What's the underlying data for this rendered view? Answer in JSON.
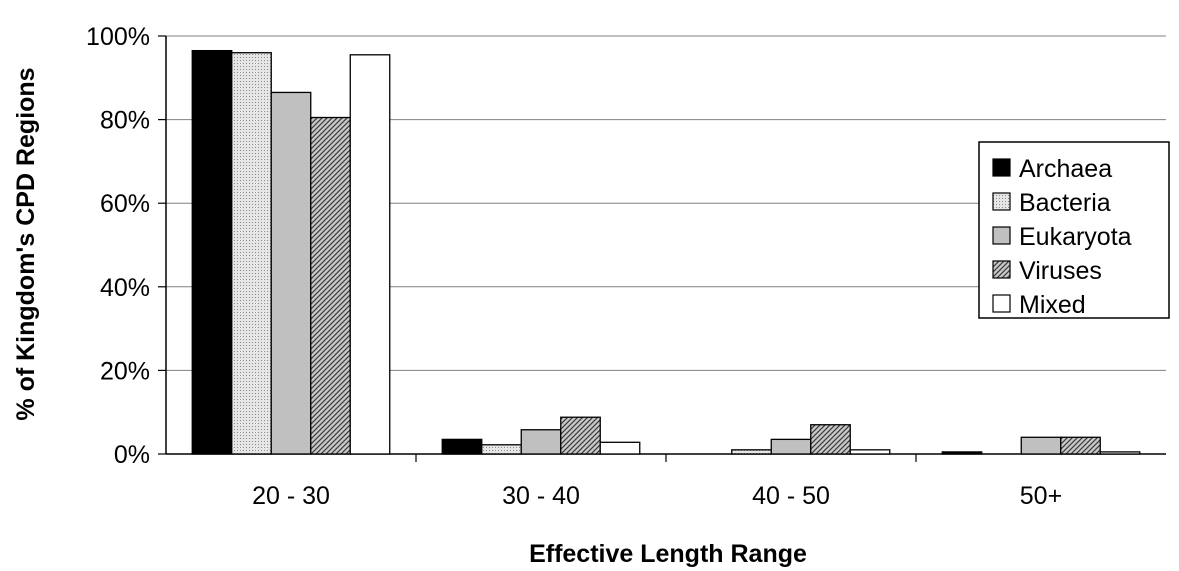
{
  "chart_data": {
    "type": "bar",
    "title": "",
    "xlabel": "Effective Length Range",
    "ylabel": "% of Kingdom's CPD Regions",
    "categories": [
      "20 - 30",
      "30 - 40",
      "40 - 50",
      "50+"
    ],
    "ylim": [
      0,
      100
    ],
    "yticks": [
      "0%",
      "20%",
      "40%",
      "60%",
      "80%",
      "100%"
    ],
    "ytick_values": [
      0,
      20,
      40,
      60,
      80,
      100
    ],
    "grid": true,
    "legend_position": "top-right",
    "series": [
      {
        "name": "Archaea",
        "values": [
          96.5,
          3.5,
          0,
          0.5
        ],
        "fill": "#000000",
        "pattern": "solid"
      },
      {
        "name": "Bacteria",
        "values": [
          96.0,
          2.2,
          1.0,
          0
        ],
        "fill": "#d9d9d9",
        "pattern": "dots"
      },
      {
        "name": "Eukaryota",
        "values": [
          86.5,
          5.8,
          3.5,
          4.0
        ],
        "fill": "#c0c0c0",
        "pattern": "solid"
      },
      {
        "name": "Viruses",
        "values": [
          80.5,
          8.8,
          7.0,
          4.0
        ],
        "fill": "#a6a6a6",
        "pattern": "hatch"
      },
      {
        "name": "Mixed",
        "values": [
          95.5,
          2.8,
          1.0,
          0.5
        ],
        "fill": "#ffffff",
        "pattern": "solid"
      }
    ]
  }
}
